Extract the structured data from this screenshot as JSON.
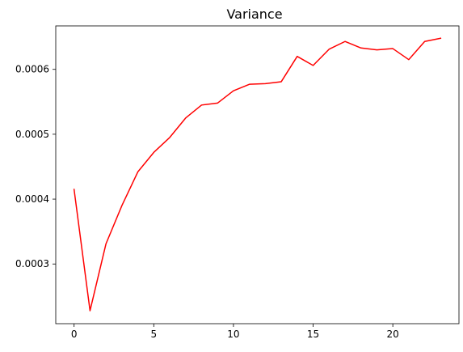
{
  "chart_data": {
    "type": "line",
    "title": "Variance",
    "xlabel": "",
    "ylabel": "",
    "xlim": [
      -1.15,
      24.15
    ],
    "ylim": [
      0.000208,
      0.000667
    ],
    "x_ticks": [
      0,
      5,
      10,
      15,
      20
    ],
    "y_ticks": [
      0.0003,
      0.0004,
      0.0005,
      0.0006
    ],
    "x_tick_labels": [
      "0",
      "5",
      "10",
      "15",
      "20"
    ],
    "y_tick_labels": [
      "0.0003",
      "0.0004",
      "0.0005",
      "0.0006"
    ],
    "grid": false,
    "legend": "none",
    "series": [
      {
        "color": "#ff0000",
        "x": [
          0,
          1,
          2,
          3,
          4,
          5,
          6,
          7,
          8,
          9,
          10,
          11,
          12,
          13,
          14,
          15,
          16,
          17,
          18,
          19,
          20,
          21,
          22,
          23
        ],
        "y": [
          0.000415,
          0.000228,
          0.000331,
          0.00039,
          0.000442,
          0.000472,
          0.000495,
          0.000525,
          0.000545,
          0.000548,
          0.000567,
          0.000577,
          0.000578,
          0.000581,
          0.00062,
          0.000606,
          0.000631,
          0.000643,
          0.000633,
          0.00063,
          0.000632,
          0.000615,
          0.000643,
          0.000648
        ]
      }
    ]
  }
}
